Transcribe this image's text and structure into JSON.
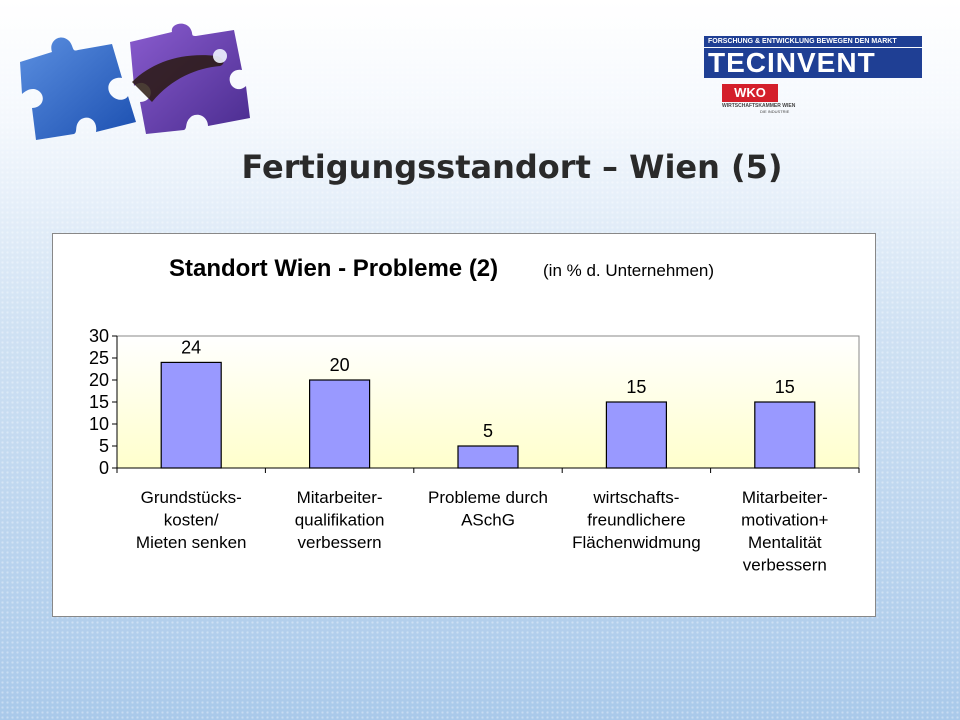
{
  "slide_title": "Fertigungsstandort – Wien (5)",
  "logo": {
    "band_text": "FORSCHUNG & ENTWICKLUNG BEWEGEN DEN MARKT",
    "tec": "TEC",
    "invent": "INVENT",
    "wko": "WKO",
    "wko_sub1": "WIRTSCHAFTSKAMMER WIEN",
    "wko_sub2": "DIE INDUSTRIE"
  },
  "colors": {
    "bar_fill": "#9999ff",
    "plot_gradient_top": "#ffffff",
    "plot_gradient_bottom": "#ffffcc",
    "logo_blue": "#1f3f94",
    "wko_red": "#d41f2b"
  },
  "chart_data": {
    "type": "bar",
    "title": "Standort Wien - Probleme (2)",
    "subtitle": "(in % d. Unternehmen)",
    "categories": [
      [
        "Grundstücks-",
        "kosten/",
        "Mieten senken"
      ],
      [
        "Mitarbeiter-",
        "qualifikation",
        "verbessern"
      ],
      [
        "Probleme durch",
        "ASchG"
      ],
      [
        "wirtschafts-",
        "freundlichere",
        "Flächenwidmung"
      ],
      [
        "Mitarbeiter-",
        "motivation+",
        "Mentalität",
        "verbessern"
      ]
    ],
    "values": [
      24,
      20,
      5,
      15,
      15
    ],
    "data_labels": [
      "24",
      "20",
      "5",
      "15",
      "15"
    ],
    "ylim": [
      0,
      30
    ],
    "yticks": [
      "0",
      "5",
      "10",
      "15",
      "20",
      "25",
      "30"
    ],
    "grid": false,
    "legend": "none"
  }
}
